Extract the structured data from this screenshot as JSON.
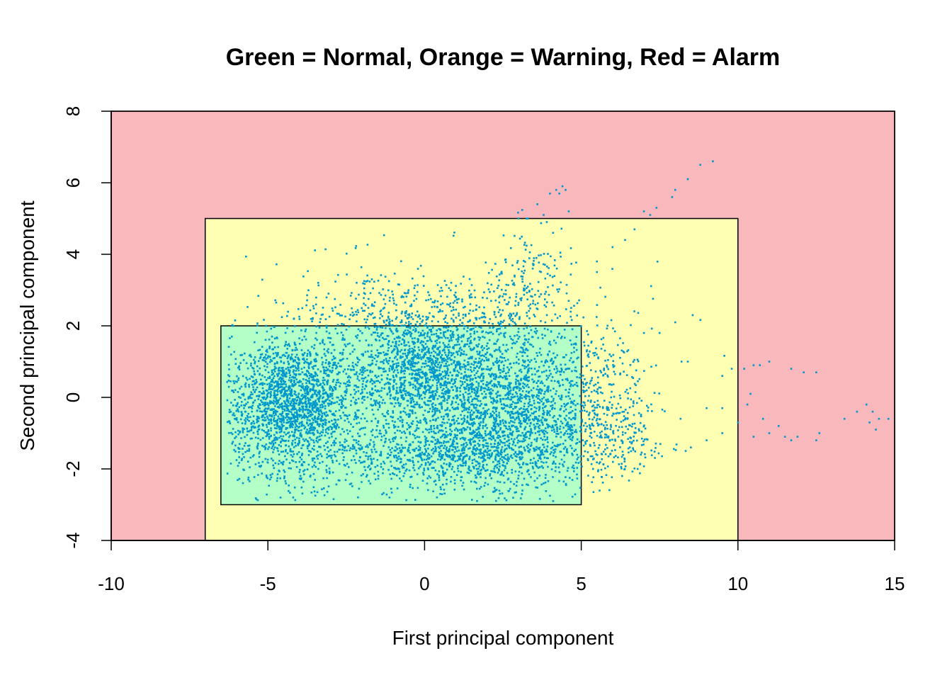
{
  "chart_data": {
    "type": "scatter",
    "title": "Green = Normal, Orange = Warning, Red = Alarm",
    "xlabel": "First principal component",
    "ylabel": "Second principal component",
    "xlim": [
      -10,
      15
    ],
    "ylim": [
      -4,
      8
    ],
    "xticks": [
      "-10",
      "-5",
      "0",
      "5",
      "10",
      "15"
    ],
    "yticks": [
      "-4",
      "-2",
      "0",
      "2",
      "4",
      "6",
      "8"
    ],
    "grid": false,
    "zones": [
      {
        "label": "Alarm",
        "color": "#f8b8bc",
        "x": [
          -10,
          15
        ],
        "y": [
          -4,
          8
        ]
      },
      {
        "label": "Warning",
        "color": "#ffffb4",
        "x": [
          -7,
          10
        ],
        "y": [
          -4,
          5
        ]
      },
      {
        "label": "Normal",
        "color": "#b4ffc8",
        "x": [
          -6.5,
          5
        ],
        "y": [
          -3,
          2
        ]
      }
    ],
    "point_color": "#0097cc",
    "clusters": [
      {
        "cx": -4.2,
        "cy": -0.2,
        "sx": 1.0,
        "sy": 1.0,
        "n": 1900
      },
      {
        "cx": 0.0,
        "cy": 0.6,
        "sx": 1.4,
        "sy": 0.75,
        "n": 1500
      },
      {
        "cx": 2.8,
        "cy": -0.4,
        "sx": 1.3,
        "sy": 1.0,
        "n": 1400
      },
      {
        "cx": 0.8,
        "cy": -1.6,
        "sx": 2.0,
        "sy": 0.5,
        "n": 900
      },
      {
        "cx": 0.5,
        "cy": 2.3,
        "sx": 2.4,
        "sy": 0.7,
        "n": 650
      },
      {
        "cx": 5.8,
        "cy": -1.0,
        "sx": 0.8,
        "sy": 0.6,
        "n": 300
      },
      {
        "cx": 5.5,
        "cy": 0.8,
        "sx": 0.9,
        "sy": 0.6,
        "n": 160
      },
      {
        "cx": 3.5,
        "cy": 3.3,
        "sx": 0.6,
        "sy": 0.6,
        "n": 120
      }
    ],
    "outliers": [
      [
        3.0,
        5.0
      ],
      [
        3.3,
        5.0
      ],
      [
        3.6,
        5.4
      ],
      [
        3.8,
        5.1
      ],
      [
        4.0,
        5.7
      ],
      [
        4.2,
        5.8
      ],
      [
        4.3,
        5.7
      ],
      [
        4.4,
        5.9
      ],
      [
        4.5,
        5.8
      ],
      [
        4.6,
        5.2
      ],
      [
        3.9,
        4.9
      ],
      [
        4.1,
        4.6
      ],
      [
        5.5,
        3.8
      ],
      [
        6.0,
        4.2
      ],
      [
        6.4,
        4.4
      ],
      [
        6.7,
        4.7
      ],
      [
        7.0,
        5.2
      ],
      [
        7.2,
        5.1
      ],
      [
        7.4,
        5.3
      ],
      [
        7.9,
        5.6
      ],
      [
        8.0,
        5.8
      ],
      [
        8.4,
        6.1
      ],
      [
        8.8,
        6.5
      ],
      [
        9.2,
        6.6
      ],
      [
        8.0,
        2.1
      ],
      [
        7.0,
        1.8
      ],
      [
        7.5,
        1.8
      ],
      [
        8.2,
        1.0
      ],
      [
        8.4,
        1.0
      ],
      [
        9.5,
        0.6
      ],
      [
        9.8,
        0.8
      ],
      [
        10.2,
        0.8
      ],
      [
        10.5,
        0.9
      ],
      [
        10.7,
        0.9
      ],
      [
        11.0,
        1.0
      ],
      [
        11.7,
        0.8
      ],
      [
        12.1,
        0.7
      ],
      [
        12.5,
        0.7
      ],
      [
        10.4,
        0.1
      ],
      [
        10.3,
        -0.2
      ],
      [
        9.0,
        -0.3
      ],
      [
        9.5,
        -0.3
      ],
      [
        10.0,
        -0.7
      ],
      [
        10.5,
        -1.1
      ],
      [
        10.8,
        -0.6
      ],
      [
        11.0,
        -1.0
      ],
      [
        11.3,
        -0.8
      ],
      [
        11.5,
        -1.1
      ],
      [
        11.7,
        -1.2
      ],
      [
        11.9,
        -1.1
      ],
      [
        12.5,
        -1.2
      ],
      [
        12.6,
        -1.0
      ],
      [
        13.4,
        -0.6
      ],
      [
        13.8,
        -0.4
      ],
      [
        14.1,
        -0.2
      ],
      [
        14.3,
        -0.4
      ],
      [
        14.5,
        -0.6
      ],
      [
        14.8,
        -0.6
      ],
      [
        14.2,
        -0.7
      ],
      [
        14.4,
        -0.9
      ],
      [
        8.5,
        -1.4
      ],
      [
        9.0,
        -1.2
      ],
      [
        9.5,
        -1.0
      ],
      [
        6.9,
        -1.6
      ],
      [
        6.8,
        -2.0
      ]
    ]
  }
}
